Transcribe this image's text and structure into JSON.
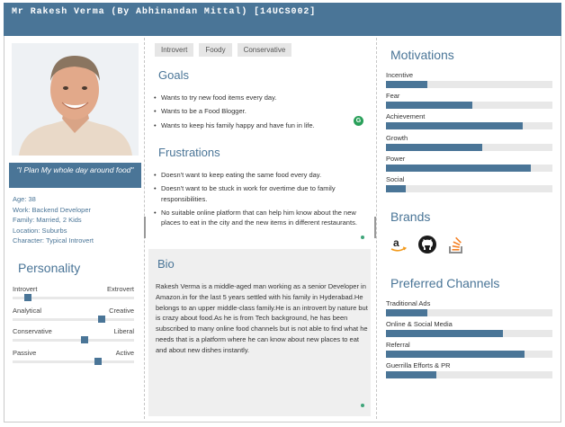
{
  "header": {
    "title": "Mr Rakesh Verma (By Abhinandan Mittal) [14UCS002]"
  },
  "profile": {
    "quote": "\"I Plan My whole day around food\"",
    "facts": [
      "Age: 38",
      "Work: Backend Developer",
      "Family: Married, 2 Kids",
      "Location: Suburbs",
      "Character: Typical Introvert"
    ]
  },
  "personality": {
    "title": "Personality",
    "scales": [
      {
        "left": "Introvert",
        "right": "Extrovert",
        "value": 0.1
      },
      {
        "left": "Analytical",
        "right": "Creative",
        "value": 0.75
      },
      {
        "left": "Conservative",
        "right": "Liberal",
        "value": 0.6
      },
      {
        "left": "Passive",
        "right": "Active",
        "value": 0.72
      }
    ]
  },
  "tags": [
    "Introvert",
    "Foody",
    "Conservative"
  ],
  "goals": {
    "title": "Goals",
    "items": [
      "Wants to try new food items every day.",
      "Wants to be a Food Blogger.",
      "Wants to keep his family happy and have fun in life."
    ]
  },
  "frustrations": {
    "title": "Frustrations",
    "items": [
      "Doesn't want to keep eating the same food every day.",
      "Doesn't want to be stuck in work for overtime due to family responsibilities.",
      "No suitable online platform that can help him know about the new places to eat in the city and the new items in different restaurants."
    ]
  },
  "bio": {
    "title": "Bio",
    "text": "Rakesh Verma is a middle-aged man working as a senior Developer in Amazon.in for the last 5 years settled with his family in Hyderabad.He belongs to an upper middle-class family.He is an introvert by nature but is crazy about food.As he is from Tech background, he has been subscribed to many online food channels but is not able to find what he needs that is a platform where he can know about new places to eat and about new dishes instantly."
  },
  "motivations": {
    "title": "Motivations",
    "items": [
      {
        "label": "Incentive",
        "value": 0.25
      },
      {
        "label": "Fear",
        "value": 0.52
      },
      {
        "label": "Achievement",
        "value": 0.82
      },
      {
        "label": "Growth",
        "value": 0.58
      },
      {
        "label": "Power",
        "value": 0.87
      },
      {
        "label": "Social",
        "value": 0.12
      }
    ]
  },
  "brands": {
    "title": "Brands",
    "icons": [
      "amazon-icon",
      "github-icon",
      "stackoverflow-icon"
    ]
  },
  "channels": {
    "title": "Preferred Channels",
    "items": [
      {
        "label": "Traditional Ads",
        "value": 0.25
      },
      {
        "label": "Online & Social Media",
        "value": 0.7
      },
      {
        "label": "Referral",
        "value": 0.83
      },
      {
        "label": "Guerrilla Efforts & PR",
        "value": 0.3
      }
    ]
  },
  "colors": {
    "accent": "#4a7597",
    "track": "#e8e8e8",
    "bio_bg": "#efefef"
  }
}
